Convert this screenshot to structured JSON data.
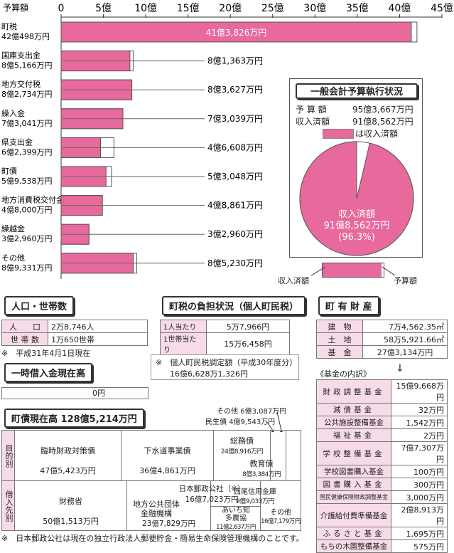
{
  "chart_data": {
    "type": "bar",
    "title": "",
    "ylabel": "予算額",
    "xlim": [
      0,
      45
    ],
    "ticks": [
      "0",
      "5億",
      "10億",
      "15億",
      "20億",
      "25億",
      "30億",
      "35億",
      "40億",
      "45億"
    ],
    "series": [
      {
        "name": "予算額",
        "unit": "億円"
      },
      {
        "name": "収入済額",
        "unit": "億円"
      }
    ],
    "categories": [
      {
        "name": "町税",
        "budget_label": "42億498万円",
        "revenue_label": "41億3,826万円",
        "budget": 42.0498,
        "revenue": 41.3826
      },
      {
        "name": "国庫支出金",
        "budget_label": "8億5,166万円",
        "revenue_label": "8億1,363万円",
        "budget": 8.5166,
        "revenue": 8.1363
      },
      {
        "name": "地方交付税",
        "budget_label": "8億2,734万円",
        "revenue_label": "8億3,627万円",
        "budget": 8.2734,
        "revenue": 8.3627
      },
      {
        "name": "繰入金",
        "budget_label": "7億3,041万円",
        "revenue_label": "7億3,039万円",
        "budget": 7.3041,
        "revenue": 7.3039
      },
      {
        "name": "県支出金",
        "budget_label": "6億2,399万円",
        "revenue_label": "4億6,608万円",
        "budget": 6.2399,
        "revenue": 4.6608
      },
      {
        "name": "町債",
        "budget_label": "5億9,538万円",
        "revenue_label": "5億3,048万円",
        "budget": 5.9538,
        "revenue": 5.3048
      },
      {
        "name": "地方消費税交付金",
        "budget_label": "4億8,000万円",
        "revenue_label": "4億8,861万円",
        "budget": 4.8,
        "revenue": 4.8861
      },
      {
        "name": "繰越金",
        "budget_label": "3億2,960万円",
        "revenue_label": "3億2,960万円",
        "budget": 3.296,
        "revenue": 3.296
      },
      {
        "name": "その他",
        "budget_label": "8億9,331万円",
        "revenue_label": "8億5,230万円",
        "budget": 8.9331,
        "revenue": 8.523
      }
    ]
  },
  "colors": {
    "pink": "#e8699c",
    "light_pink": "#f7dbe8",
    "dark": "#333333"
  },
  "general": {
    "title": "一般会計予算執行状況",
    "budget_label": "予 算 額",
    "budget_value": "95億3,667万円",
    "revenue_label": "収入済額",
    "revenue_value": "91億8,562万円",
    "legend_text": "は収入済額",
    "pie_line1": "収入済額",
    "pie_line2": "91億8,562万円",
    "pie_line3": "(96.3%)",
    "pie_fraction": 0.963,
    "bar_left": "収入済額",
    "bar_right": "予算額"
  },
  "population": {
    "title": "人口・世帯数",
    "rows": [
      {
        "k": "人　　口",
        "v": "2万8,746人"
      },
      {
        "k": "世 帯 数",
        "v": "1万650世帯"
      }
    ],
    "note": "※　平成31年4月1日現在"
  },
  "tax": {
    "title": "町税の負担状況（個人町民税）",
    "rows": [
      {
        "k": "1人当たり",
        "v": "5万7,966円"
      },
      {
        "k": "1世帯当たり",
        "v": "15万6,458円"
      }
    ],
    "note1": "※　個人町民税調定額（平成30年度分）",
    "note2": "16億6,628万1,326円"
  },
  "property": {
    "title": "町 有 財 産",
    "rows": [
      {
        "k": "建　物",
        "v": "7万4,562.35㎡"
      },
      {
        "k": "土　地",
        "v": "58万5,921.66㎡"
      },
      {
        "k": "基　金",
        "v": "27億3,134万円"
      }
    ],
    "fund_caption": "《基金の内訳》",
    "funds": [
      {
        "k": "財政調整基金",
        "v": "15億9,668万円"
      },
      {
        "k": "減債基金",
        "v": "32万円"
      },
      {
        "k": "公共施設整備基金",
        "v": "1,542万円"
      },
      {
        "k": "福祉基金",
        "v": "2万円"
      },
      {
        "k": "学校整備基金",
        "v": "7億7,307万円"
      },
      {
        "k": "学校図書購入基金",
        "v": "100万円"
      },
      {
        "k": "図書購入基金",
        "v": "300万円"
      },
      {
        "k": "国民健康保険財政調整基金",
        "v": "3,000万円"
      },
      {
        "k": "介護給付費準備基金",
        "v": "2億8,913万円"
      },
      {
        "k": "ふるさと基金",
        "v": "1,695万円"
      },
      {
        "k": "もちの木園整備基金",
        "v": "575万円"
      }
    ]
  },
  "loan": {
    "title": "一時借入金現在高",
    "value": "0円"
  },
  "debt": {
    "title": "町債現在高 128億5,214万円",
    "purpose_label": "目的別",
    "lender_label": "借入先別",
    "purpose": [
      {
        "name": "臨時財政対策債",
        "value": "47億5,423万円"
      },
      {
        "name": "下水道事業債",
        "value": "36億4,861万円"
      },
      {
        "name": "総務債",
        "value": "24億8,916万円"
      },
      {
        "name": "教育債",
        "value": "8億3,384万円"
      },
      {
        "name": "民生債",
        "value": "4億9,543万円"
      },
      {
        "name": "その他",
        "value": "6億3,087万円"
      }
    ],
    "lender": [
      {
        "name": "財務省",
        "value": "50億1,513万円"
      },
      {
        "name": "日本郵政公社（※）",
        "value": "16億7,023万円"
      },
      {
        "name": "地方公共団体金融機構",
        "value": "23億7,829万円"
      },
      {
        "name": "西尾信用金庫",
        "value": "9億9,033万円"
      },
      {
        "name": "あいち知多農協",
        "value": "11億2,637万円"
      },
      {
        "name": "その他",
        "value": "16億7,179万円"
      }
    ],
    "footnote": "※　日本郵政公社は現在の独立行政法人郵便貯金・簡易生命保険管理機構のことです。"
  }
}
